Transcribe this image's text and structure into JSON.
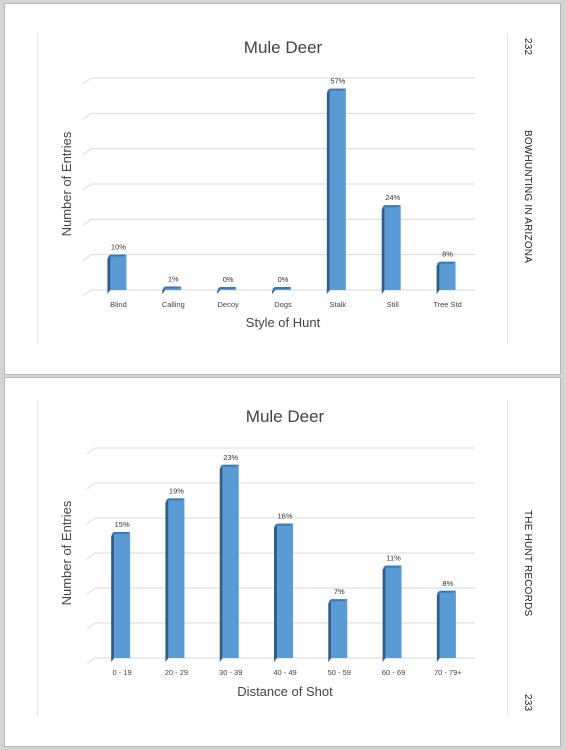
{
  "pages": [
    {
      "page_number": "232",
      "running_head": "BOWHUNTING IN ARIZONA"
    },
    {
      "page_number": "233",
      "running_head": "THE HUNT RECORDS"
    }
  ],
  "chart_data": [
    {
      "type": "bar",
      "title": "Mule Deer",
      "xlabel": "Style of Hunt",
      "ylabel": "Number of Entries",
      "categories": [
        "Blind",
        "Calling",
        "Decoy",
        "Dogs",
        "Stalk",
        "Still",
        "Tree Std"
      ],
      "values": [
        10,
        1,
        0,
        0,
        57,
        24,
        8
      ],
      "data_labels": [
        "10%",
        "1%",
        "0%",
        "0%",
        "57%",
        "24%",
        "8%"
      ],
      "y_tick_labels_shown": false,
      "grid": true,
      "bar_color": "#5b9bd5",
      "bar_side_color": "#2e5f8a",
      "bar_top_color": "#3f78b0"
    },
    {
      "type": "bar",
      "title": "Mule Deer",
      "xlabel": "Distance of Shot",
      "ylabel": "Number of Entries",
      "categories": [
        "0 - 19",
        "20 - 29",
        "30 - 39",
        "40 - 49",
        "50 - 59",
        "60 - 69",
        "70 - 79+"
      ],
      "values": [
        15,
        19,
        23,
        16,
        7,
        11,
        8
      ],
      "data_labels": [
        "15%",
        "19%",
        "23%",
        "16%",
        "7%",
        "11%",
        "8%"
      ],
      "y_tick_labels_shown": false,
      "grid": true,
      "bar_color": "#5b9bd5",
      "bar_side_color": "#2e5f8a",
      "bar_top_color": "#3f78b0"
    }
  ]
}
